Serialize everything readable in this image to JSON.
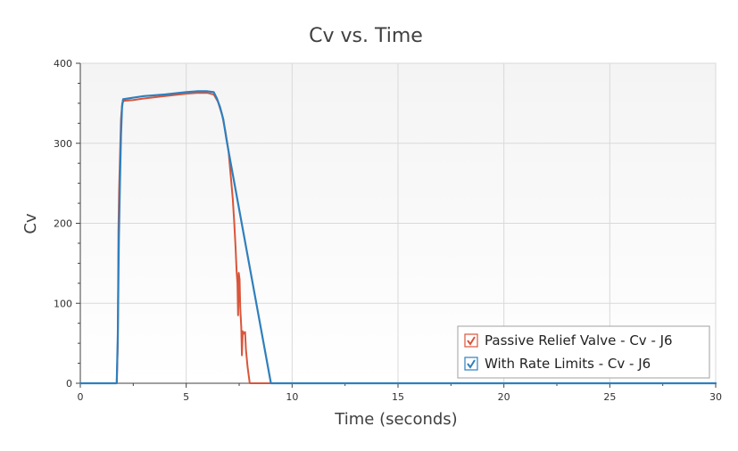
{
  "chart_data": {
    "type": "line",
    "title": "Cv vs. Time",
    "xlabel": "Time (seconds)",
    "ylabel": "Cv",
    "xlim": [
      0,
      30
    ],
    "ylim": [
      0,
      400
    ],
    "x_ticks": [
      0,
      5,
      10,
      15,
      20,
      25,
      30
    ],
    "y_ticks": [
      0,
      100,
      200,
      300,
      400
    ],
    "grid": true,
    "legend_position": "bottom-right",
    "series": [
      {
        "name": "Passive Relief Valve - Cv - J6",
        "color": "#d9553a",
        "checked": true,
        "points": [
          [
            0,
            0
          ],
          [
            1.72,
            0
          ],
          [
            1.77,
            50
          ],
          [
            1.8,
            190
          ],
          [
            1.83,
            240
          ],
          [
            1.88,
            290
          ],
          [
            1.92,
            330
          ],
          [
            1.98,
            350
          ],
          [
            2.05,
            353
          ],
          [
            2.5,
            354
          ],
          [
            3,
            356
          ],
          [
            4,
            359
          ],
          [
            5,
            362
          ],
          [
            5.5,
            363
          ],
          [
            6,
            363
          ],
          [
            6.3,
            361
          ],
          [
            6.5,
            352
          ],
          [
            6.7,
            335
          ],
          [
            6.85,
            315
          ],
          [
            7,
            290
          ],
          [
            7.1,
            260
          ],
          [
            7.2,
            230
          ],
          [
            7.27,
            200
          ],
          [
            7.33,
            170
          ],
          [
            7.38,
            140
          ],
          [
            7.42,
            125
          ],
          [
            7.45,
            85
          ],
          [
            7.48,
            138
          ],
          [
            7.52,
            130
          ],
          [
            7.55,
            95
          ],
          [
            7.6,
            70
          ],
          [
            7.63,
            35
          ],
          [
            7.67,
            65
          ],
          [
            7.72,
            62
          ],
          [
            7.78,
            64
          ],
          [
            7.82,
            42
          ],
          [
            7.9,
            20
          ],
          [
            8.0,
            0
          ],
          [
            30,
            0
          ]
        ]
      },
      {
        "name": "With Rate Limits - Cv - J6",
        "color": "#2f7fbd",
        "checked": true,
        "points": [
          [
            0,
            0
          ],
          [
            1.72,
            0
          ],
          [
            1.77,
            60
          ],
          [
            1.82,
            180
          ],
          [
            1.87,
            250
          ],
          [
            1.92,
            310
          ],
          [
            1.97,
            345
          ],
          [
            2.02,
            355
          ],
          [
            2.5,
            357
          ],
          [
            3,
            359
          ],
          [
            4,
            361
          ],
          [
            5,
            364
          ],
          [
            5.5,
            365
          ],
          [
            6,
            365
          ],
          [
            6.3,
            364
          ],
          [
            6.45,
            356
          ],
          [
            6.6,
            345
          ],
          [
            6.75,
            330
          ],
          [
            6.9,
            305
          ],
          [
            7.0,
            290
          ],
          [
            9.0,
            0
          ],
          [
            30,
            0
          ]
        ]
      }
    ]
  },
  "colors": {
    "grid": "#d9d9d9",
    "plot_border": "#c8c8c8",
    "axis": "#404040",
    "legend_border": "#a0a0a0"
  }
}
